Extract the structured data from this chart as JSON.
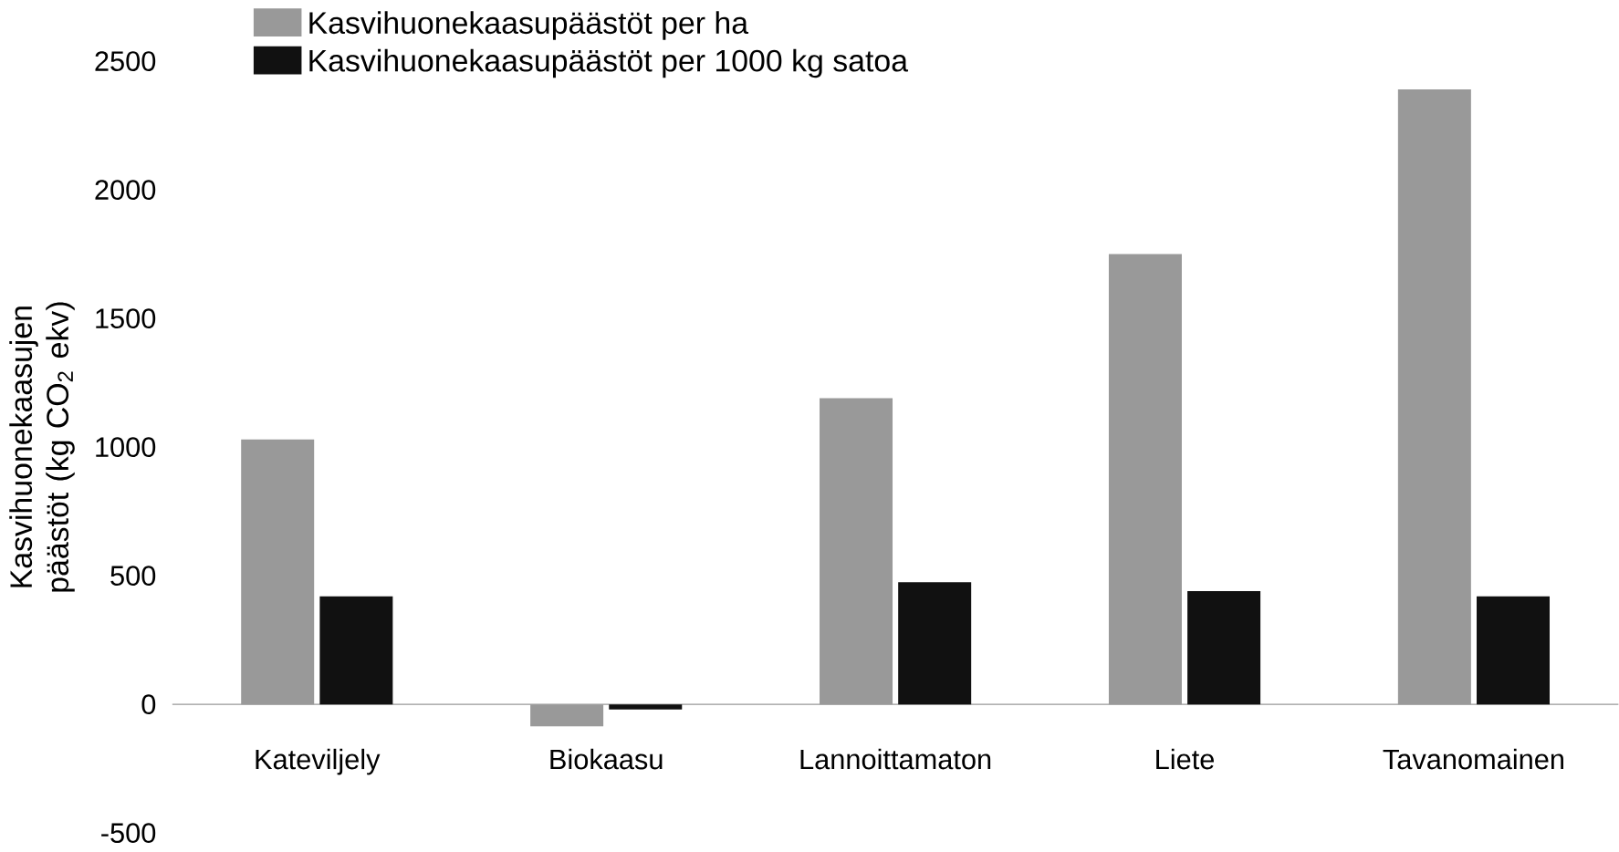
{
  "chart_data": {
    "type": "bar",
    "ylabel": "Kasvihuonekaasujen päästöt (kg CO$_{2}$ ekv)",
    "categories": [
      "Kateviljely",
      "Biokaasu",
      "Lannoittamaton",
      "Liete",
      "Tavanomainen"
    ],
    "series": [
      {
        "name": "Kasvihuonekaasupäästöt per ha",
        "color": "#999999",
        "values": [
          1030,
          -85,
          1190,
          1750,
          2390
        ]
      },
      {
        "name": "Kasvihuonekaasupäästöt per 1000 kg satoa",
        "color": "#111111",
        "values": [
          420,
          -20,
          475,
          440,
          420
        ]
      }
    ],
    "ylim": [
      -500,
      2500
    ],
    "yticks": [
      -500,
      0,
      500,
      1000,
      1500,
      2000,
      2500
    ],
    "legend": "top left",
    "grid": false
  }
}
